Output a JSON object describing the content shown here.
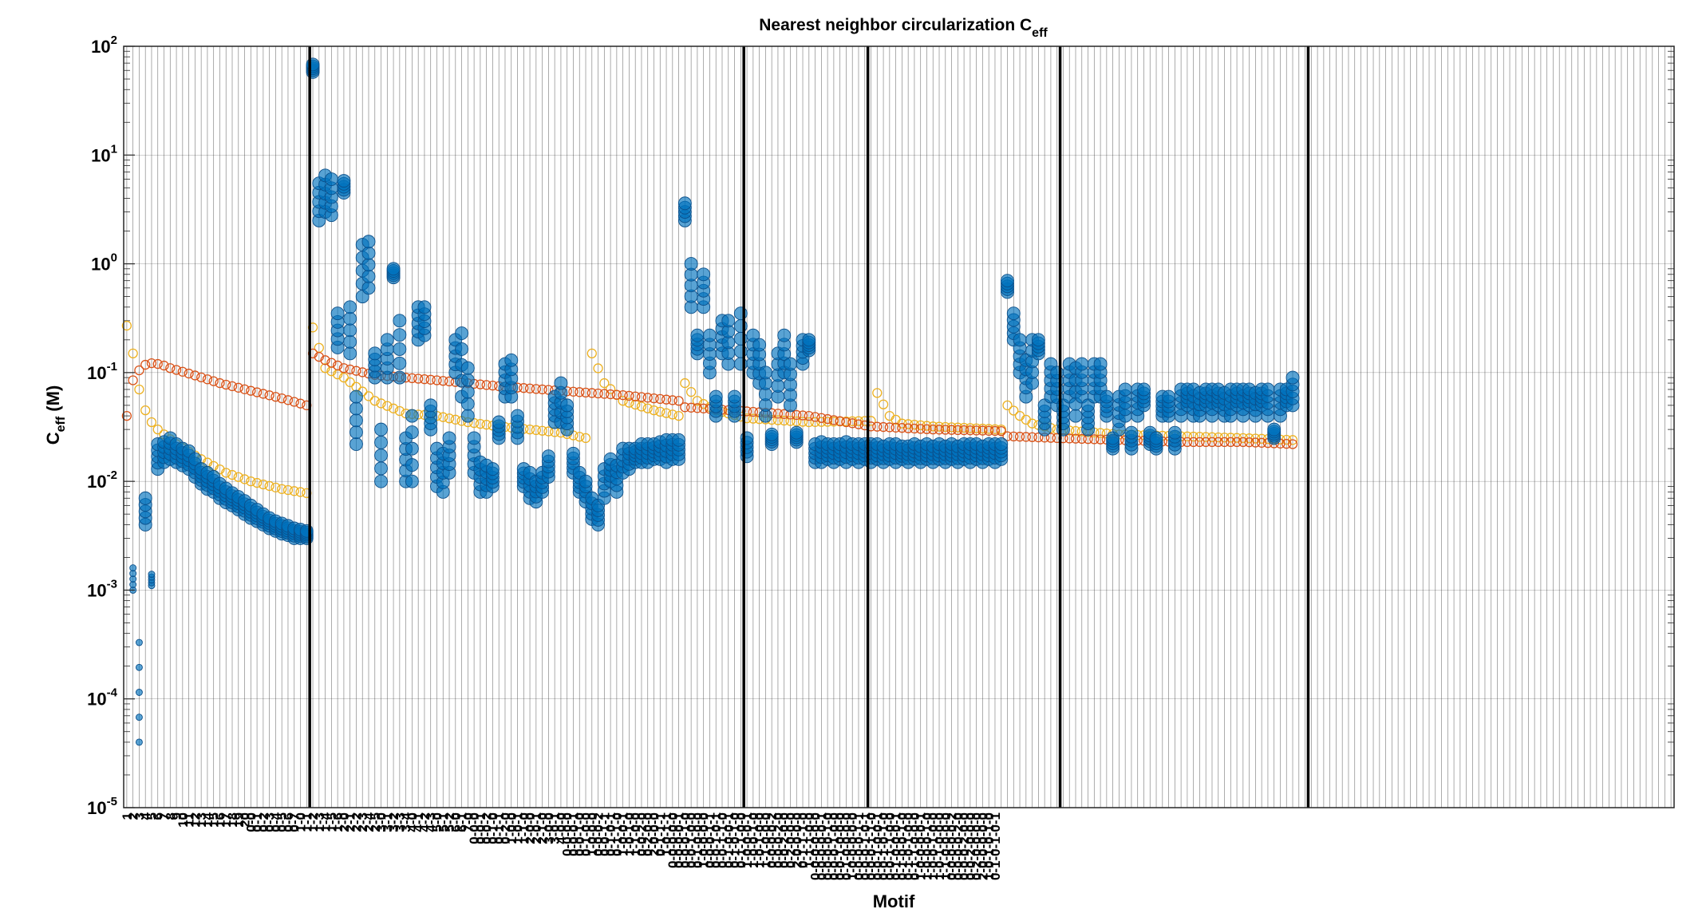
{
  "chart_data": {
    "type": "scatter",
    "title": "Nearest neighbor circularization C",
    "title_subscript": "eff",
    "ylabel": "C",
    "ylabel_subscript": "eff",
    "ylabel_unit": " (M)",
    "xlabel": "Motif",
    "yscale": "log",
    "ylim": [
      1e-05,
      100
    ],
    "yticks": [
      {
        "base": "10",
        "exp": "-5"
      },
      {
        "base": "10",
        "exp": "-4"
      },
      {
        "base": "10",
        "exp": "-3"
      },
      {
        "base": "10",
        "exp": "-2"
      },
      {
        "base": "10",
        "exp": "-1"
      },
      {
        "base": "10",
        "exp": "0"
      },
      {
        "base": "10",
        "exp": "1"
      },
      {
        "base": "10",
        "exp": "2"
      }
    ],
    "grid": true,
    "x_count": 250,
    "colors": {
      "measured": "#0072BD",
      "model_a": "#D95319",
      "model_b": "#EDB120"
    },
    "group_boundaries": [
      30,
      100,
      120,
      151,
      191
    ],
    "x_tick_labels": [
      "1",
      "2",
      "3",
      "4",
      "5",
      "6",
      "7",
      "8",
      "9",
      "10",
      "11",
      "12",
      "13",
      "14",
      "15",
      "16",
      "17",
      "18",
      "19",
      "20",
      "0-0",
      "0-1",
      "0-2",
      "0-3",
      "0-4",
      "0-5",
      "0-6",
      "0-7",
      "1-0",
      "1-1",
      "1-2",
      "1-3",
      "1-4",
      "1-5",
      "1-6",
      "2-0",
      "2-1",
      "2-2",
      "2-3",
      "2-4",
      "2-5",
      "3-0",
      "3-1",
      "3-2",
      "3-3",
      "3-4",
      "4-0",
      "4-1",
      "4-2",
      "4-3",
      "5-0",
      "5-1",
      "5-2",
      "6-0",
      "6-1",
      "7-0",
      "0-0-0",
      "0-0-1",
      "0-0-2",
      "0-1-0",
      "0-1-1",
      "0-2-0",
      "1-0-0",
      "1-0-1",
      "1-1-0",
      "2-0-0",
      "2-0-1",
      "2-1-0",
      "3-0-0",
      "3-0-1",
      "4-0-0",
      "0-0-0-0",
      "0-0-0-1",
      "0-0-1-0",
      "0-1-0-0",
      "1-0-0-0",
      "0-0-0-2",
      "0-0-1-1",
      "0-1-0-1",
      "0-1-1-0",
      "1-0-0-1",
      "1-0-1-0",
      "1-1-0-0",
      "0-0-2-0",
      "0-2-0-0",
      "2-0-0-0",
      "0-1-1-1",
      "1-0-1-1",
      "0-0-0-0-0",
      "0-0-0-0-1",
      "0-0-0-1-0",
      "0-0-1-0-0",
      "0-1-0-0-0",
      "1-0-0-0-0",
      "0-0-0-1-1",
      "0-0-1-0-1",
      "0-0-1-1-0",
      "0-1-0-0-1",
      "0-1-0-1-0",
      "0-1-1-0-0",
      "1-0-0-0-1",
      "1-0-0-1-0",
      "1-0-1-0-0",
      "1-1-0-0-0",
      "0-0-0-0-2",
      "0-0-0-2-0",
      "0-0-2-0-0",
      "0-2-0-0-0",
      "2-0-0-0-0",
      "0-1-1-1-0",
      "1-1-1-0-0",
      "0-0-0-0-0-0",
      "0-0-0-0-0-1",
      "0-0-0-0-1-0",
      "0-0-0-1-0-0",
      "0-0-1-0-0-0",
      "0-1-0-0-0-0",
      "1-0-0-0-0-0",
      "0-0-0-0-1-1",
      "0-0-0-1-0-1",
      "0-0-0-1-1-0",
      "0-0-1-0-0-1",
      "0-0-1-0-1-0",
      "0-0-1-1-0-0",
      "0-1-0-0-0-1",
      "0-1-0-0-1-0",
      "0-1-0-1-0-0",
      "0-1-1-0-0-0",
      "1-0-0-0-0-1",
      "1-0-0-0-1-0",
      "1-0-0-1-0-0",
      "1-0-1-0-0-0",
      "1-1-0-0-0-0",
      "0-0-0-0-0-2",
      "0-0-0-0-2-0",
      "0-0-0-2-0-0",
      "0-0-2-0-0-0",
      "0-2-0-0-0-0",
      "2-0-0-0-0-0",
      "1-0-1-0-1-0",
      "0-1-0-1-0-1"
    ],
    "measured_blocks": [
      [
        1,
        0.001,
        0.0016
      ],
      [
        2,
        4e-05,
        0.00033
      ],
      [
        3,
        0.004,
        0.007
      ],
      [
        4,
        0.0011,
        0.0014
      ],
      [
        5,
        0.013,
        0.022
      ],
      [
        6,
        0.015,
        0.023
      ],
      [
        7,
        0.016,
        0.025
      ],
      [
        8,
        0.015,
        0.022
      ],
      [
        9,
        0.014,
        0.02
      ],
      [
        10,
        0.013,
        0.019
      ],
      [
        11,
        0.011,
        0.016
      ],
      [
        12,
        0.0095,
        0.013
      ],
      [
        13,
        0.0085,
        0.012
      ],
      [
        14,
        0.008,
        0.011
      ],
      [
        15,
        0.007,
        0.0095
      ],
      [
        16,
        0.0064,
        0.0086
      ],
      [
        17,
        0.006,
        0.0078
      ],
      [
        18,
        0.0055,
        0.0072
      ],
      [
        19,
        0.005,
        0.0066
      ],
      [
        20,
        0.0046,
        0.006
      ],
      [
        21,
        0.0043,
        0.0055
      ],
      [
        22,
        0.004,
        0.005
      ],
      [
        23,
        0.0037,
        0.0046
      ],
      [
        24,
        0.0035,
        0.0043
      ],
      [
        25,
        0.0033,
        0.0041
      ],
      [
        26,
        0.0032,
        0.0039
      ],
      [
        27,
        0.003,
        0.0037
      ],
      [
        28,
        0.003,
        0.0036
      ],
      [
        29,
        0.003,
        0.0035
      ],
      [
        30,
        58,
        68
      ],
      [
        31,
        2.5,
        5.5
      ],
      [
        32,
        3,
        6.5
      ],
      [
        33,
        2.8,
        6
      ],
      [
        34,
        0.17,
        0.35
      ],
      [
        35,
        4.5,
        5.8
      ],
      [
        36,
        0.15,
        0.4
      ],
      [
        37,
        0.022,
        0.06
      ],
      [
        38,
        0.5,
        1.5
      ],
      [
        39,
        0.6,
        1.6
      ],
      [
        40,
        0.09,
        0.15
      ],
      [
        41,
        0.01,
        0.03
      ],
      [
        42,
        0.09,
        0.2
      ],
      [
        43,
        0.75,
        0.9
      ],
      [
        44,
        0.09,
        0.3
      ],
      [
        45,
        0.01,
        0.025
      ],
      [
        46,
        0.01,
        0.04
      ],
      [
        47,
        0.2,
        0.4
      ],
      [
        48,
        0.22,
        0.4
      ],
      [
        49,
        0.03,
        0.05
      ],
      [
        50,
        0.009,
        0.02
      ],
      [
        51,
        0.008,
        0.018
      ],
      [
        52,
        0.012,
        0.025
      ],
      [
        53,
        0.1,
        0.2
      ],
      [
        54,
        0.06,
        0.23
      ],
      [
        55,
        0.04,
        0.11
      ],
      [
        56,
        0.012,
        0.025
      ],
      [
        57,
        0.008,
        0.015
      ],
      [
        58,
        0.008,
        0.014
      ],
      [
        59,
        0.009,
        0.013
      ],
      [
        60,
        0.025,
        0.035
      ],
      [
        61,
        0.06,
        0.12
      ],
      [
        62,
        0.06,
        0.13
      ],
      [
        63,
        0.025,
        0.04
      ],
      [
        64,
        0.009,
        0.013
      ],
      [
        65,
        0.007,
        0.012
      ],
      [
        66,
        0.0065,
        0.01
      ],
      [
        67,
        0.008,
        0.012
      ],
      [
        68,
        0.011,
        0.017
      ],
      [
        69,
        0.035,
        0.06
      ],
      [
        70,
        0.035,
        0.08
      ],
      [
        71,
        0.03,
        0.05
      ],
      [
        72,
        0.012,
        0.018
      ],
      [
        73,
        0.008,
        0.012
      ],
      [
        74,
        0.0065,
        0.01
      ],
      [
        75,
        0.0045,
        0.007
      ],
      [
        76,
        0.004,
        0.006
      ],
      [
        77,
        0.007,
        0.013
      ],
      [
        78,
        0.01,
        0.016
      ],
      [
        79,
        0.008,
        0.014
      ],
      [
        80,
        0.012,
        0.02
      ],
      [
        81,
        0.013,
        0.02
      ],
      [
        82,
        0.015,
        0.02
      ],
      [
        83,
        0.015,
        0.022
      ],
      [
        84,
        0.015,
        0.022
      ],
      [
        85,
        0.016,
        0.022
      ],
      [
        86,
        0.016,
        0.023
      ],
      [
        87,
        0.015,
        0.024
      ],
      [
        88,
        0.016,
        0.024
      ],
      [
        89,
        0.016,
        0.024
      ],
      [
        90,
        2.5,
        3.6
      ],
      [
        91,
        0.4,
        1
      ],
      [
        92,
        0.15,
        0.22
      ],
      [
        93,
        0.4,
        0.8
      ],
      [
        94,
        0.1,
        0.22
      ],
      [
        95,
        0.04,
        0.06
      ],
      [
        96,
        0.15,
        0.3
      ],
      [
        97,
        0.12,
        0.3
      ],
      [
        98,
        0.04,
        0.06
      ],
      [
        99,
        0.12,
        0.35
      ],
      [
        100,
        0.017,
        0.025
      ],
      [
        101,
        0.1,
        0.22
      ],
      [
        102,
        0.08,
        0.18
      ],
      [
        103,
        0.04,
        0.1
      ],
      [
        104,
        0.022,
        0.027
      ],
      [
        105,
        0.06,
        0.15
      ],
      [
        106,
        0.1,
        0.22
      ],
      [
        107,
        0.05,
        0.12
      ],
      [
        108,
        0.023,
        0.028
      ],
      [
        109,
        0.12,
        0.2
      ],
      [
        110,
        0.16,
        0.2
      ],
      [
        111,
        0.015,
        0.022
      ],
      [
        112,
        0.015,
        0.023
      ],
      [
        113,
        0.016,
        0.022
      ],
      [
        114,
        0.015,
        0.022
      ],
      [
        115,
        0.016,
        0.022
      ],
      [
        116,
        0.015,
        0.023
      ],
      [
        117,
        0.016,
        0.022
      ],
      [
        118,
        0.015,
        0.022
      ],
      [
        119,
        0.016,
        0.022
      ],
      [
        120,
        0.015,
        0.022
      ],
      [
        121,
        0.016,
        0.022
      ],
      [
        122,
        0.015,
        0.021
      ],
      [
        123,
        0.016,
        0.022
      ],
      [
        124,
        0.015,
        0.022
      ],
      [
        125,
        0.016,
        0.021
      ],
      [
        126,
        0.015,
        0.021
      ],
      [
        127,
        0.016,
        0.022
      ],
      [
        128,
        0.015,
        0.021
      ],
      [
        129,
        0.016,
        0.022
      ],
      [
        130,
        0.015,
        0.021
      ],
      [
        131,
        0.016,
        0.022
      ],
      [
        132,
        0.015,
        0.021
      ],
      [
        133,
        0.016,
        0.022
      ],
      [
        134,
        0.015,
        0.021
      ],
      [
        135,
        0.016,
        0.022
      ],
      [
        136,
        0.015,
        0.022
      ],
      [
        137,
        0.016,
        0.022
      ],
      [
        138,
        0.015,
        0.021
      ],
      [
        139,
        0.016,
        0.022
      ],
      [
        140,
        0.015,
        0.022
      ],
      [
        141,
        0.016,
        0.022
      ],
      [
        142,
        0.55,
        0.7
      ],
      [
        143,
        0.2,
        0.35
      ],
      [
        144,
        0.1,
        0.2
      ],
      [
        145,
        0.06,
        0.13
      ],
      [
        146,
        0.08,
        0.2
      ],
      [
        147,
        0.15,
        0.2
      ],
      [
        148,
        0.03,
        0.05
      ],
      [
        149,
        0.06,
        0.12
      ],
      [
        150,
        0.05,
        0.1
      ],
      [
        151,
        0.03,
        0.05
      ],
      [
        152,
        0.06,
        0.12
      ],
      [
        153,
        0.04,
        0.11
      ],
      [
        154,
        0.06,
        0.12
      ],
      [
        155,
        0.03,
        0.05
      ],
      [
        156,
        0.06,
        0.12
      ],
      [
        157,
        0.06,
        0.12
      ],
      [
        158,
        0.04,
        0.06
      ],
      [
        159,
        0.02,
        0.025
      ],
      [
        160,
        0.03,
        0.06
      ],
      [
        161,
        0.04,
        0.07
      ],
      [
        162,
        0.02,
        0.028
      ],
      [
        163,
        0.04,
        0.07
      ],
      [
        164,
        0.05,
        0.07
      ],
      [
        165,
        0.022,
        0.028
      ],
      [
        166,
        0.02,
        0.025
      ],
      [
        167,
        0.04,
        0.06
      ],
      [
        168,
        0.04,
        0.06
      ],
      [
        169,
        0.02,
        0.028
      ],
      [
        170,
        0.04,
        0.07
      ],
      [
        171,
        0.05,
        0.07
      ],
      [
        172,
        0.04,
        0.07
      ],
      [
        173,
        0.04,
        0.065
      ],
      [
        174,
        0.05,
        0.07
      ],
      [
        175,
        0.04,
        0.07
      ],
      [
        176,
        0.05,
        0.07
      ],
      [
        177,
        0.04,
        0.065
      ],
      [
        178,
        0.04,
        0.07
      ],
      [
        179,
        0.05,
        0.07
      ],
      [
        180,
        0.04,
        0.07
      ],
      [
        181,
        0.05,
        0.07
      ],
      [
        182,
        0.04,
        0.065
      ],
      [
        183,
        0.05,
        0.07
      ],
      [
        184,
        0.04,
        0.07
      ],
      [
        185,
        0.025,
        0.03
      ],
      [
        186,
        0.04,
        0.07
      ],
      [
        187,
        0.05,
        0.07
      ],
      [
        188,
        0.05,
        0.09
      ]
    ],
    "model_a_curve": [
      [
        0,
        0.04
      ],
      [
        1,
        0.085
      ],
      [
        2,
        0.105
      ],
      [
        3,
        0.118
      ],
      [
        4,
        0.122
      ],
      [
        5,
        0.12
      ],
      [
        6,
        0.116
      ],
      [
        7,
        0.11
      ],
      [
        10,
        0.098
      ],
      [
        15,
        0.08
      ],
      [
        20,
        0.068
      ],
      [
        25,
        0.058
      ],
      [
        29,
        0.05
      ],
      [
        30,
        0.15
      ],
      [
        32,
        0.13
      ],
      [
        35,
        0.11
      ],
      [
        40,
        0.095
      ],
      [
        50,
        0.085
      ],
      [
        60,
        0.075
      ],
      [
        70,
        0.068
      ],
      [
        80,
        0.062
      ],
      [
        89,
        0.055
      ],
      [
        90,
        0.048
      ],
      [
        95,
        0.046
      ],
      [
        100,
        0.044
      ],
      [
        110,
        0.04
      ],
      [
        120,
        0.032
      ],
      [
        130,
        0.03
      ],
      [
        141,
        0.029
      ],
      [
        142,
        0.026
      ],
      [
        150,
        0.025
      ],
      [
        160,
        0.024
      ],
      [
        170,
        0.023
      ],
      [
        180,
        0.023
      ],
      [
        188,
        0.022
      ]
    ],
    "model_b_curve": [
      [
        0,
        0.27
      ],
      [
        1,
        0.15
      ],
      [
        2,
        0.07
      ],
      [
        3,
        0.045
      ],
      [
        4,
        0.035
      ],
      [
        5,
        0.03
      ],
      [
        8,
        0.022
      ],
      [
        12,
        0.016
      ],
      [
        16,
        0.012
      ],
      [
        20,
        0.01
      ],
      [
        25,
        0.0085
      ],
      [
        29,
        0.0078
      ],
      [
        30,
        0.26
      ],
      [
        32,
        0.11
      ],
      [
        35,
        0.09
      ],
      [
        40,
        0.055
      ],
      [
        45,
        0.042
      ],
      [
        50,
        0.04
      ],
      [
        55,
        0.035
      ],
      [
        60,
        0.032
      ],
      [
        65,
        0.03
      ],
      [
        70,
        0.028
      ],
      [
        74,
        0.025
      ],
      [
        75,
        0.15
      ],
      [
        77,
        0.08
      ],
      [
        80,
        0.055
      ],
      [
        85,
        0.045
      ],
      [
        89,
        0.04
      ],
      [
        90,
        0.08
      ],
      [
        92,
        0.055
      ],
      [
        95,
        0.045
      ],
      [
        100,
        0.038
      ],
      [
        110,
        0.035
      ],
      [
        120,
        0.036
      ],
      [
        121,
        0.065
      ],
      [
        123,
        0.04
      ],
      [
        125,
        0.034
      ],
      [
        130,
        0.032
      ],
      [
        141,
        0.03
      ],
      [
        142,
        0.05
      ],
      [
        144,
        0.04
      ],
      [
        146,
        0.034
      ],
      [
        150,
        0.03
      ],
      [
        160,
        0.027
      ],
      [
        170,
        0.026
      ],
      [
        180,
        0.025
      ],
      [
        188,
        0.024
      ]
    ]
  }
}
